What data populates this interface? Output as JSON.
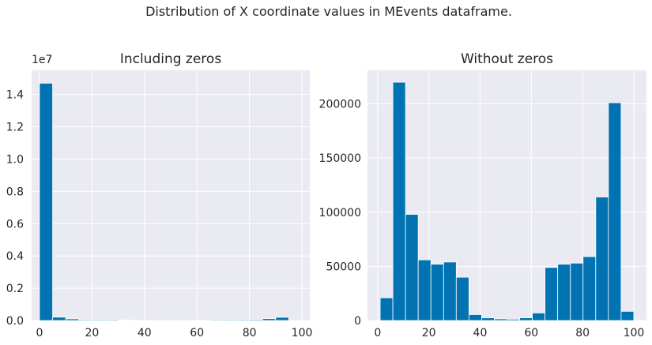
{
  "figure": {
    "suptitle": "Distribution of X coordinate values in MEvents dataframe.",
    "colors": {
      "background": "#eaeaf2",
      "grid": "#ffffff",
      "bar": "#0173b2",
      "text": "#262626"
    }
  },
  "chart_data": [
    {
      "type": "bar",
      "title": "Including zeros",
      "xlabel": "",
      "ylabel": "",
      "bin_edges": [
        0,
        5,
        10,
        15,
        20,
        25,
        30,
        35,
        40,
        45,
        50,
        55,
        60,
        65,
        70,
        75,
        80,
        85,
        90,
        95,
        100
      ],
      "values": [
        14700000,
        210000,
        100000,
        55000,
        52000,
        54000,
        40000,
        6000,
        3000,
        1500,
        1500,
        3000,
        7000,
        50000,
        52000,
        54000,
        60000,
        115000,
        200000,
        9000
      ],
      "xlim": [
        -3,
        103
      ],
      "ylim": [
        0,
        15500000
      ],
      "xticks": [
        0,
        20,
        40,
        60,
        80,
        100
      ],
      "xtick_labels": [
        "0",
        "20",
        "40",
        "60",
        "80",
        "100"
      ],
      "yticks": [
        0,
        2000000,
        4000000,
        6000000,
        8000000,
        10000000,
        12000000,
        14000000
      ],
      "ytick_labels": [
        "0.0",
        "0.2",
        "0.4",
        "0.6",
        "0.8",
        "1.0",
        "1.2",
        "1.4"
      ],
      "offset_label": "1e7",
      "grid": true
    },
    {
      "type": "bar",
      "title": "Without zeros",
      "xlabel": "",
      "ylabel": "",
      "bin_edges": [
        1,
        5.95,
        10.9,
        15.85,
        20.8,
        25.75,
        30.7,
        35.65,
        40.6,
        45.55,
        50.5,
        55.45,
        60.4,
        65.35,
        70.3,
        75.25,
        80.2,
        85.15,
        90.1,
        95.05,
        100
      ],
      "values": [
        21000,
        220000,
        98000,
        56000,
        52000,
        54000,
        40000,
        5500,
        2500,
        1500,
        1200,
        2500,
        7000,
        49000,
        52000,
        53000,
        59000,
        114000,
        201000,
        8500
      ],
      "xlim": [
        -3.95,
        104.95
      ],
      "ylim": [
        0,
        231000
      ],
      "xticks": [
        0,
        20,
        40,
        60,
        80,
        100
      ],
      "xtick_labels": [
        "0",
        "20",
        "40",
        "60",
        "80",
        "100"
      ],
      "yticks": [
        0,
        50000,
        100000,
        150000,
        200000
      ],
      "ytick_labels": [
        "0",
        "50000",
        "100000",
        "150000",
        "200000"
      ],
      "grid": true
    }
  ]
}
